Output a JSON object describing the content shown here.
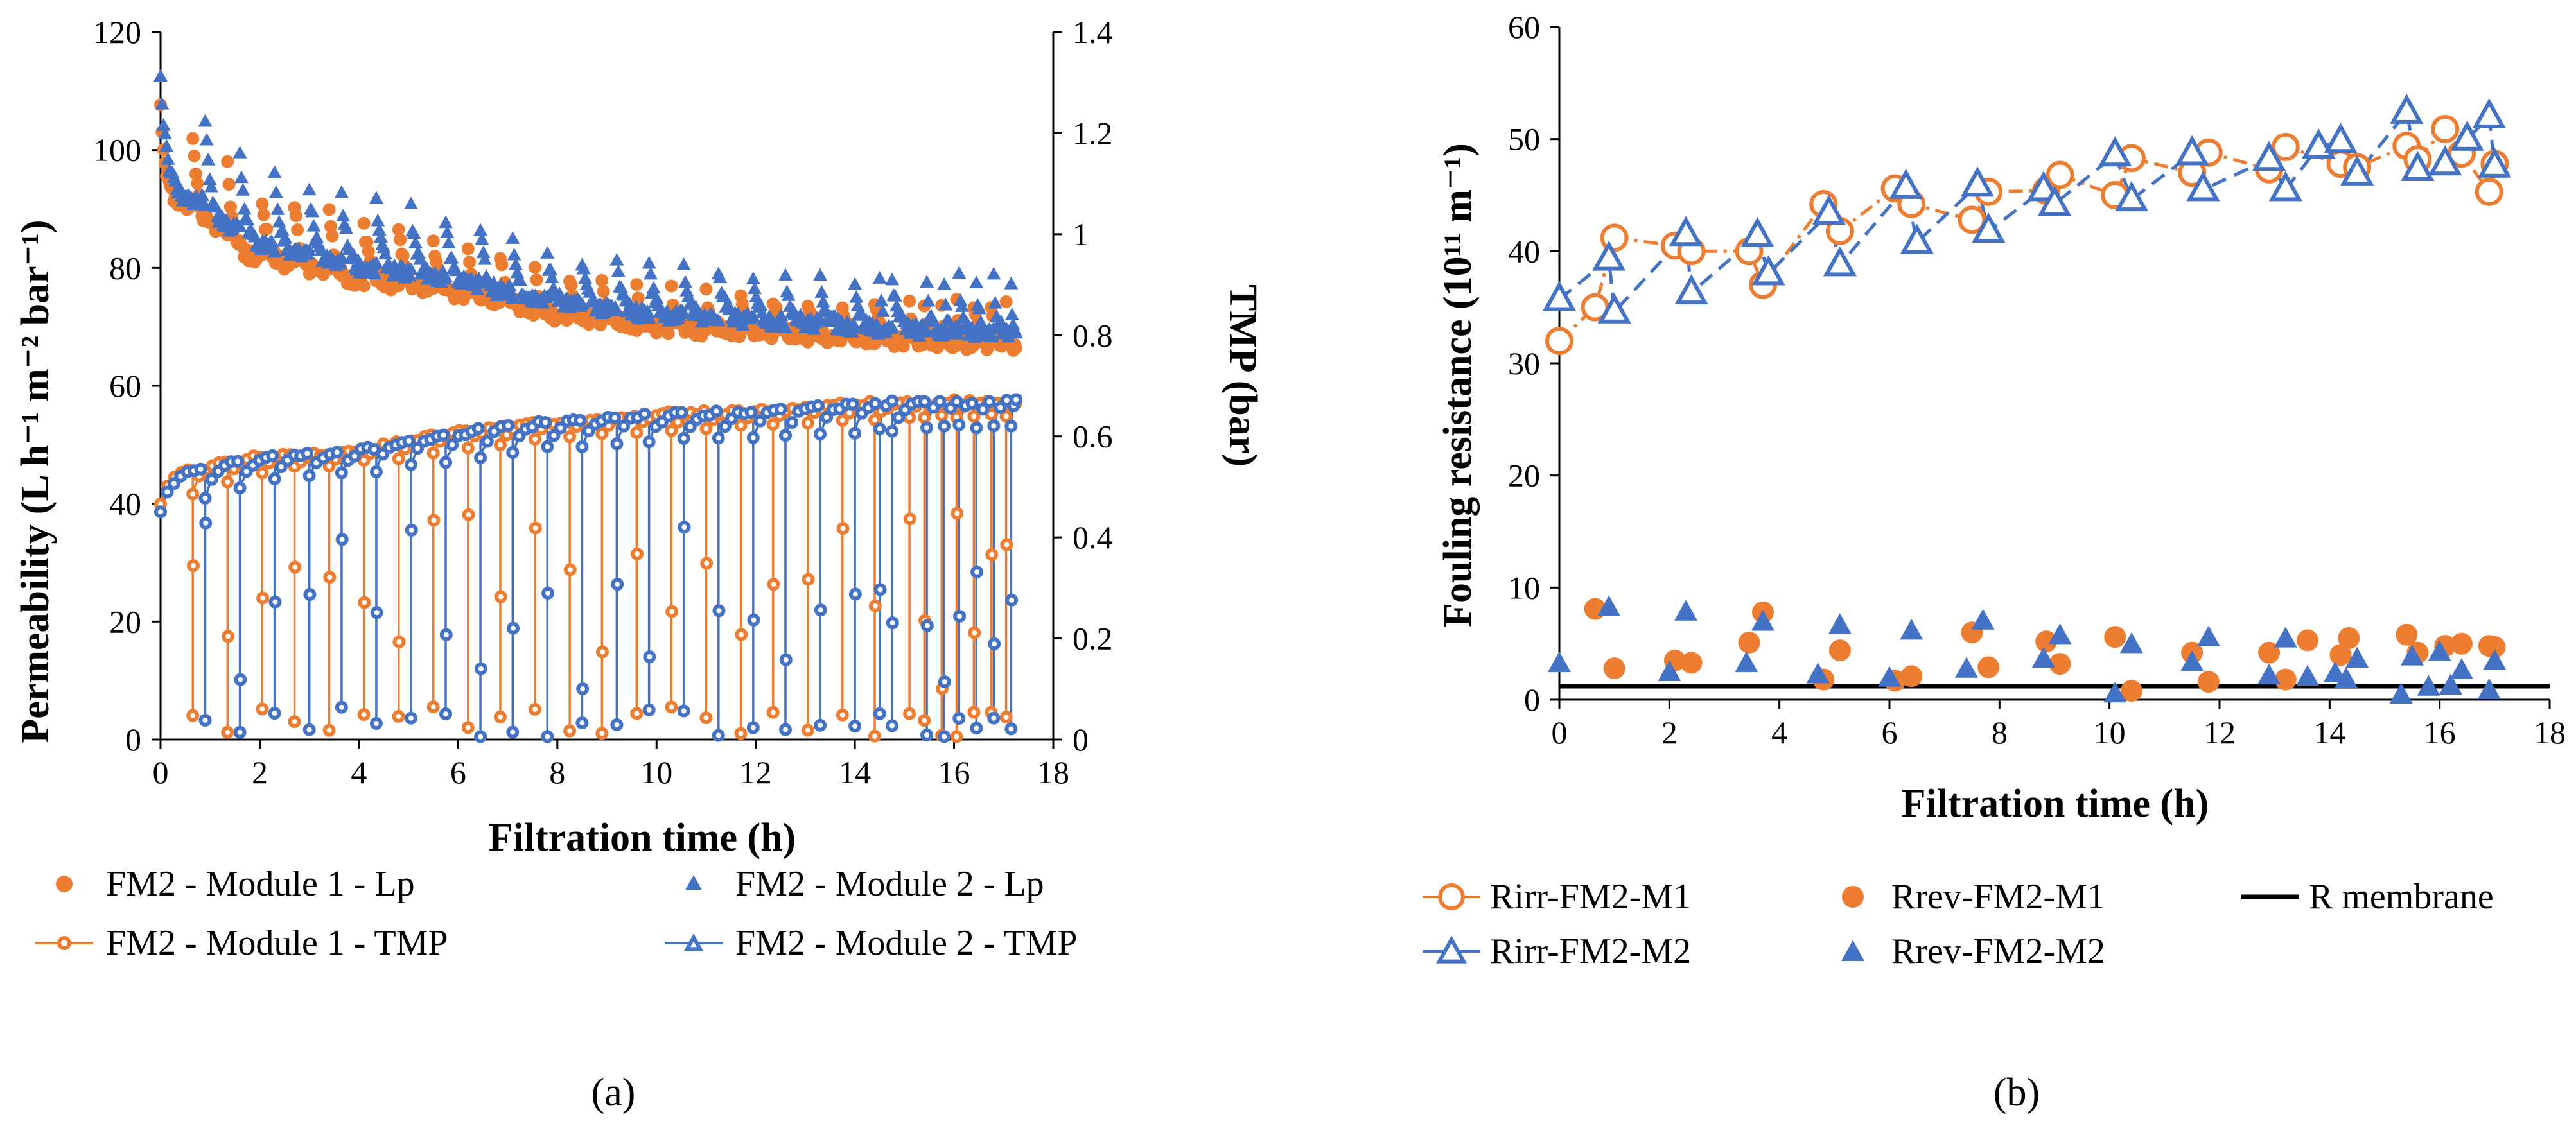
{
  "colors": {
    "orange": "#ED7D31",
    "blue": "#4472C4",
    "black": "#000000",
    "axis": "#000000",
    "ref_grid": "#D9D9D9"
  },
  "panel_labels": [
    "(a)",
    "(b)"
  ],
  "chart_data": [
    {
      "type": "scatter",
      "panel": "(a)",
      "xlabel": "Filtration time (h)",
      "ylabel": "Permeability (L h⁻¹ m⁻² bar⁻¹)",
      "y2label": "TMP (bar)",
      "xlim": [
        0,
        18
      ],
      "ylim": [
        0,
        120
      ],
      "y2lim": [
        0,
        1.4
      ],
      "xticks": [
        0,
        2,
        4,
        6,
        8,
        10,
        12,
        14,
        16,
        18
      ],
      "yticks": [
        0,
        20,
        40,
        60,
        80,
        100,
        120
      ],
      "y2ticks": [
        "0",
        "0.2",
        "0.4",
        "0.6",
        "0.8",
        "1",
        "1.2",
        "1.4"
      ],
      "grid": false,
      "legend_position": "bottom",
      "legend": [
        "FM2 - Module 1 - Lp",
        "FM2 - Module 2 - Lp",
        "FM2 - Module 1 - TMP",
        "FM2 - Module 2 - TMP"
      ],
      "cycles": {
        "m1_start_hours": [
          0,
          0.65,
          1.35,
          2.05,
          2.7,
          3.4,
          4.1,
          4.8,
          5.5,
          6.2,
          6.85,
          7.55,
          8.25,
          8.9,
          9.6,
          10.3,
          11.0,
          11.7,
          12.35,
          13.05,
          13.75,
          14.4,
          15.1,
          15.4,
          15.75,
          16.05,
          16.4,
          16.75,
          17.05
        ],
        "m2_start_hours": [
          0,
          0.9,
          1.6,
          2.3,
          3.0,
          3.65,
          4.35,
          5.05,
          5.75,
          6.45,
          7.1,
          7.8,
          8.5,
          9.2,
          9.85,
          10.55,
          11.25,
          11.95,
          12.6,
          13.3,
          14.0,
          14.5,
          14.75,
          15.45,
          15.8,
          16.1,
          16.45,
          16.8,
          17.15
        ],
        "lp_start_h": [
          0,
          2,
          4,
          6,
          8,
          10,
          12,
          14,
          16,
          17.2
        ],
        "lp_start_val": [
          108,
          92,
          88,
          84,
          78,
          76,
          75,
          74,
          74,
          74
        ],
        "lp_end_h": [
          0,
          2,
          4,
          6,
          8,
          10,
          12,
          14,
          16,
          17.2
        ],
        "lp_end_val": [
          95,
          82,
          78,
          76,
          72,
          70,
          69,
          68,
          67,
          67
        ],
        "tmp_start_h": [
          0,
          2,
          4,
          6,
          8,
          10,
          12,
          14,
          16,
          17.2
        ],
        "tmp_start_val": [
          0.47,
          0.53,
          0.55,
          0.57,
          0.6,
          0.61,
          0.62,
          0.63,
          0.64,
          0.64
        ],
        "tmp_end_h": [
          0,
          2,
          4,
          6,
          8,
          10,
          12,
          14,
          16,
          17.2
        ],
        "tmp_end_val": [
          0.52,
          0.56,
          0.57,
          0.61,
          0.63,
          0.645,
          0.65,
          0.665,
          0.67,
          0.67
        ]
      }
    },
    {
      "type": "scatter",
      "panel": "(b)",
      "xlabel": "Filtration time  (h)",
      "ylabel": "Fouling resistance (10¹¹ m⁻¹)",
      "xlim": [
        0,
        18
      ],
      "ylim": [
        0,
        60
      ],
      "xticks": [
        0,
        2,
        4,
        6,
        8,
        10,
        12,
        14,
        16,
        18
      ],
      "yticks": [
        0,
        10,
        20,
        30,
        40,
        50,
        60
      ],
      "grid": false,
      "legend_position": "bottom",
      "series": [
        {
          "name": "Rirr-FM2-M1",
          "marker": "open-circle",
          "line": "dash-dot",
          "color": "#ED7D31",
          "x": [
            0,
            0.65,
            1.0,
            2.1,
            2.4,
            3.45,
            3.7,
            4.8,
            5.1,
            6.1,
            6.4,
            7.5,
            7.8,
            8.85,
            9.1,
            10.1,
            10.4,
            11.5,
            11.8,
            12.9,
            13.2,
            14.2,
            14.5,
            15.4,
            15.6,
            16.1,
            16.4,
            16.9,
            17.0
          ],
          "y": [
            32,
            35,
            41.2,
            40.5,
            40,
            40,
            37,
            44.2,
            41.8,
            45.6,
            44.2,
            42.8,
            45.3,
            45.4,
            46.8,
            45,
            48.3,
            47,
            48.8,
            47.3,
            49.3,
            47.8,
            47.5,
            49.4,
            48.2,
            50.9,
            48.7,
            45.3,
            47.8
          ]
        },
        {
          "name": "Rrev-FM2-M1",
          "marker": "filled-circle",
          "line": "none",
          "color": "#ED7D31",
          "x": [
            0.65,
            1.0,
            2.1,
            2.4,
            3.45,
            3.7,
            4.8,
            5.1,
            6.1,
            6.4,
            7.5,
            7.8,
            8.85,
            9.1,
            10.1,
            10.4,
            11.5,
            11.8,
            12.9,
            13.2,
            13.6,
            14.2,
            14.35,
            15.4,
            15.6,
            16.1,
            16.4,
            16.9,
            17.0
          ],
          "y": [
            8.1,
            2.8,
            3.5,
            3.3,
            5.1,
            7.8,
            1.8,
            4.4,
            1.7,
            2.1,
            6.0,
            2.9,
            5.2,
            3.2,
            5.6,
            0.8,
            4.2,
            1.6,
            4.2,
            1.8,
            5.3,
            4.0,
            5.5,
            5.8,
            4.2,
            4.8,
            5.0,
            4.8,
            4.7
          ]
        },
        {
          "name": "Rirr-FM2-M2",
          "marker": "open-triangle",
          "line": "dash",
          "color": "#4472C4",
          "x": [
            0,
            0.9,
            1.0,
            2.3,
            2.4,
            3.6,
            3.8,
            4.9,
            5.1,
            6.3,
            6.5,
            7.6,
            7.8,
            8.8,
            9.0,
            10.1,
            10.4,
            11.5,
            11.7,
            12.9,
            13.2,
            13.8,
            14.2,
            14.5,
            15.4,
            15.6,
            16.1,
            16.5,
            16.9,
            17.0
          ],
          "y": [
            35.7,
            39.3,
            34.6,
            41.5,
            36.3,
            41.4,
            38.0,
            43.4,
            38.8,
            45.7,
            40.8,
            45.9,
            41.8,
            45.5,
            44.2,
            48.6,
            44.6,
            48.7,
            45.5,
            48.2,
            45.5,
            49.3,
            49.8,
            46.9,
            52.4,
            47.3,
            47.8,
            50.0,
            52.0,
            47.6
          ]
        },
        {
          "name": "Rrev-FM2-M2",
          "marker": "filled-triangle",
          "line": "none",
          "color": "#4472C4",
          "x": [
            0,
            0.9,
            2.0,
            2.3,
            3.4,
            3.7,
            4.7,
            5.1,
            6.0,
            6.4,
            7.4,
            7.7,
            8.8,
            9.1,
            10.1,
            10.4,
            11.5,
            11.8,
            12.9,
            13.2,
            13.6,
            14.1,
            14.3,
            14.5,
            15.3,
            15.5,
            15.8,
            16.0,
            16.2,
            16.4,
            16.9,
            17.0
          ],
          "y": [
            3.2,
            8.2,
            2.4,
            7.8,
            3.2,
            6.9,
            2.2,
            6.6,
            1.9,
            6.1,
            2.7,
            7.0,
            3.6,
            5.7,
            0.5,
            4.9,
            3.3,
            5.5,
            2.1,
            5.4,
            2.0,
            2.3,
            1.8,
            3.6,
            0.4,
            3.8,
            1.1,
            4.2,
            1.2,
            2.6,
            0.8,
            3.4
          ]
        },
        {
          "name": "R membrane",
          "marker": "none",
          "line": "solid",
          "color": "#000000",
          "x": [
            0,
            18
          ],
          "y": [
            1.2,
            1.2
          ]
        }
      ]
    }
  ]
}
